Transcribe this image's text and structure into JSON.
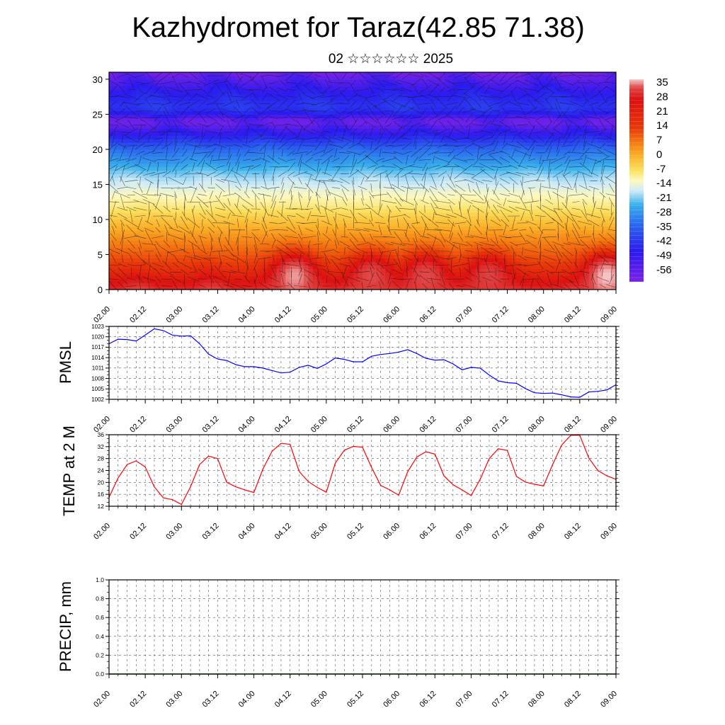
{
  "title": "Kazhydromet for Taraz(42.85 71.38)",
  "subtitle": "02 ☆☆☆☆☆☆ 2025",
  "colors": {
    "pmsl_line": "#0000ff",
    "temp_line": "#ff0000",
    "grid": "#555555"
  },
  "chart_data": [
    {
      "type": "heatmap",
      "name": "cross-section",
      "x_ticks": [
        "02.00",
        "02.12",
        "03.00",
        "03.12",
        "04.00",
        "04.12",
        "05.00",
        "05.12",
        "06.00",
        "06.12",
        "07.00",
        "07.12",
        "08.00",
        "08.12",
        "09.00"
      ],
      "y_ticks": [
        "0",
        "5",
        "10",
        "15",
        "20",
        "25",
        "30"
      ],
      "ylim": [
        0,
        31
      ],
      "colorbar_labels": [
        "35",
        "28",
        "21",
        "14",
        "7",
        "0",
        "-7",
        "-14",
        "-21",
        "-28",
        "-35",
        "-42",
        "-49",
        "-56"
      ],
      "colorbar_range": [
        -60,
        38
      ],
      "levels": [
        0,
        2,
        4,
        6,
        8,
        10,
        12,
        14,
        16,
        18,
        20,
        22,
        24,
        26,
        28,
        30,
        31
      ],
      "profile": [
        30,
        24,
        19,
        13,
        7,
        0,
        -8,
        -14,
        -22,
        -34,
        -44,
        -56,
        -62,
        -52,
        -56,
        -60,
        -62
      ],
      "hot_spots": [
        {
          "t": 20.5,
          "z": 2,
          "value": 38
        },
        {
          "t": 29,
          "z": 2,
          "value": 34
        },
        {
          "t": 35,
          "z": 2,
          "value": 34
        },
        {
          "t": 42,
          "z": 2,
          "value": 33
        },
        {
          "t": 55,
          "z": 2,
          "value": 40
        }
      ]
    },
    {
      "type": "line",
      "name": "pmsl",
      "ylabel": "PMSL",
      "x_ticks": [
        "02.00",
        "02.12",
        "03.00",
        "03.12",
        "04.00",
        "04.12",
        "05.00",
        "05.12",
        "06.00",
        "06.12",
        "07.00",
        "07.12",
        "08.00",
        "08.12",
        "09.00"
      ],
      "y_ticks": [
        "1023",
        "1020",
        "1017",
        "1014",
        "1011",
        "1008",
        "1005",
        "1002"
      ],
      "ylim": [
        1002,
        1023
      ],
      "x": [
        0,
        1,
        2,
        3,
        4,
        5,
        6,
        7,
        8,
        9,
        10,
        11,
        12,
        13,
        14,
        15,
        16,
        17,
        18,
        19,
        20,
        21,
        22,
        23,
        24,
        25,
        26,
        27,
        28,
        29,
        30,
        31,
        32,
        33,
        34,
        35,
        36,
        37,
        38,
        39,
        40,
        41,
        42,
        43,
        44,
        45,
        46,
        47,
        48,
        49,
        50,
        51,
        52,
        53,
        54,
        55,
        56
      ],
      "values": [
        1018.0,
        1019.3,
        1019.2,
        1018.8,
        1020.5,
        1022.3,
        1021.8,
        1020.5,
        1020.2,
        1020.3,
        1018.0,
        1015.0,
        1013.6,
        1013.2,
        1012.0,
        1011.4,
        1011.4,
        1011.0,
        1010.3,
        1009.6,
        1009.8,
        1011.2,
        1011.8,
        1010.9,
        1012.2,
        1013.9,
        1013.5,
        1012.8,
        1012.8,
        1014.4,
        1014.9,
        1015.2,
        1015.6,
        1016.3,
        1015.2,
        1013.8,
        1013.3,
        1013.4,
        1012.2,
        1010.5,
        1011.2,
        1011.0,
        1009.0,
        1007.3,
        1006.8,
        1006.6,
        1005.1,
        1003.9,
        1003.7,
        1003.8,
        1003.3,
        1002.7,
        1002.6,
        1004.1,
        1004.3,
        1004.7,
        1006.2
      ]
    },
    {
      "type": "line",
      "name": "temp-2m",
      "ylabel": "TEMP at 2 M",
      "x_ticks": [
        "02.00",
        "02.12",
        "03.00",
        "03.12",
        "04.00",
        "04.12",
        "05.00",
        "05.12",
        "06.00",
        "06.12",
        "07.00",
        "07.12",
        "08.00",
        "08.12",
        "09.00"
      ],
      "y_ticks": [
        "36",
        "32",
        "28",
        "24",
        "20",
        "16",
        "12"
      ],
      "ylim": [
        12,
        36
      ],
      "x": [
        0,
        1,
        2,
        3,
        4,
        5,
        6,
        7,
        8,
        9,
        10,
        11,
        12,
        13,
        14,
        15,
        16,
        17,
        18,
        19,
        20,
        21,
        22,
        23,
        24,
        25,
        26,
        27,
        28,
        29,
        30,
        31,
        32,
        33,
        34,
        35,
        36,
        37,
        38,
        39,
        40,
        41,
        42,
        43,
        44,
        45,
        46,
        47,
        48,
        49,
        50,
        51,
        52,
        53,
        54,
        55,
        56
      ],
      "values": [
        15.0,
        21.5,
        26.0,
        27.2,
        25.2,
        18.5,
        14.8,
        14.2,
        12.6,
        18.5,
        26.0,
        28.8,
        28.0,
        20.0,
        18.5,
        17.5,
        16.6,
        24.5,
        30.4,
        33.1,
        32.8,
        23.7,
        20.3,
        18.3,
        16.7,
        26.5,
        30.8,
        32.1,
        31.8,
        25.0,
        19.0,
        17.5,
        15.7,
        23.6,
        28.5,
        30.3,
        29.5,
        22.2,
        19.2,
        17.5,
        15.6,
        21.0,
        28.0,
        31.3,
        30.7,
        22.0,
        20.1,
        19.4,
        18.8,
        26.0,
        32.5,
        35.8,
        35.8,
        28.2,
        24.0,
        22.2,
        21.0
      ]
    },
    {
      "type": "line",
      "name": "precip",
      "ylabel": "PRECIP, mm",
      "x_ticks": [
        "02.00",
        "02.12",
        "03.00",
        "03.12",
        "04.00",
        "04.12",
        "05.00",
        "05.12",
        "06.00",
        "06.12",
        "07.00",
        "07.12",
        "08.00",
        "08.12",
        "09.00"
      ],
      "y_ticks": [
        "1.0",
        "0.8",
        "0.6",
        "0.4",
        "0.2",
        "0.0"
      ],
      "ylim": [
        0,
        1
      ],
      "values": []
    }
  ]
}
